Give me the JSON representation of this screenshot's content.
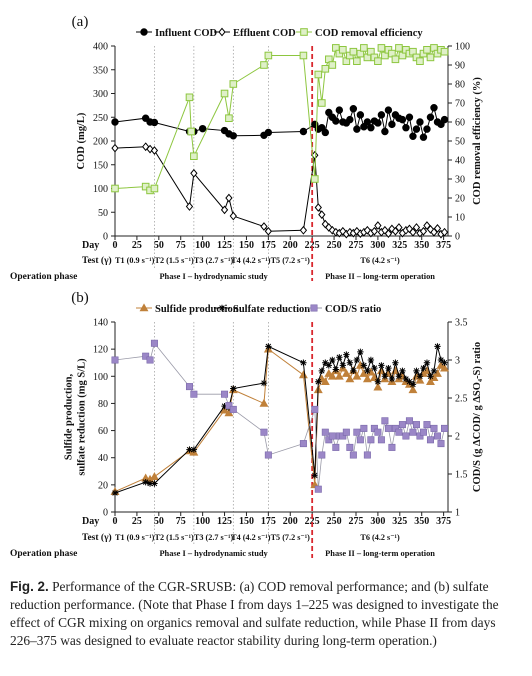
{
  "chart_data": [
    {
      "type": "line",
      "panel_label": "(a)",
      "xlabel": "Day",
      "ylabel": "COD (mg/L)",
      "ylabel_right": "COD removal efficiency (%)",
      "xlim": [
        0,
        380
      ],
      "ylim": [
        0,
        400
      ],
      "ylim_right": [
        0,
        100
      ],
      "xticks": [
        0,
        25,
        50,
        75,
        100,
        125,
        150,
        175,
        200,
        225,
        250,
        275,
        300,
        325,
        350,
        375
      ],
      "yticks": [
        0,
        50,
        100,
        150,
        200,
        250,
        300,
        350,
        400
      ],
      "yticks_right": [
        0,
        10,
        20,
        30,
        40,
        50,
        60,
        70,
        80,
        90,
        100
      ],
      "legend": [
        "Influent COD",
        "Effluent COD",
        "COD removal efficiency"
      ],
      "series": [
        {
          "name": "Influent COD",
          "axis": "left",
          "marker": "filled-circle",
          "color": "#000000",
          "x": [
            0,
            35,
            40,
            45,
            85,
            90,
            100,
            125,
            130,
            135,
            170,
            175,
            215,
            228,
            232,
            236,
            240,
            244,
            248,
            252,
            256,
            260,
            264,
            268,
            272,
            276,
            280,
            284,
            288,
            292,
            296,
            300,
            304,
            308,
            312,
            316,
            320,
            324,
            328,
            332,
            336,
            340,
            344,
            348,
            352,
            356,
            360,
            364,
            368,
            372,
            376
          ],
          "y": [
            240,
            248,
            240,
            239,
            220,
            220,
            226,
            222,
            215,
            211,
            212,
            218,
            220,
            235,
            225,
            228,
            218,
            260,
            250,
            242,
            265,
            240,
            238,
            245,
            268,
            225,
            255,
            230,
            240,
            228,
            242,
            238,
            255,
            220,
            265,
            235,
            255,
            248,
            245,
            228,
            250,
            210,
            225,
            240,
            208,
            225,
            250,
            270,
            240,
            235,
            245
          ]
        },
        {
          "name": "Effluent COD",
          "axis": "left",
          "marker": "open-diamond",
          "color": "#000000",
          "x": [
            0,
            35,
            40,
            45,
            85,
            90,
            125,
            130,
            135,
            170,
            175,
            215,
            228,
            232,
            236,
            240,
            244,
            248,
            252,
            256,
            260,
            264,
            268,
            272,
            276,
            280,
            284,
            288,
            292,
            296,
            300,
            304,
            308,
            312,
            316,
            320,
            324,
            328,
            332,
            336,
            340,
            344,
            348,
            352,
            356,
            360,
            364,
            368,
            372,
            376
          ],
          "y": [
            185,
            188,
            183,
            180,
            62,
            132,
            55,
            80,
            42,
            20,
            10,
            12,
            170,
            60,
            45,
            25,
            18,
            12,
            8,
            6,
            10,
            4,
            8,
            6,
            10,
            5,
            8,
            12,
            6,
            10,
            22,
            8,
            12,
            5,
            15,
            10,
            18,
            6,
            12,
            15,
            8,
            18,
            6,
            10,
            22,
            14,
            8,
            16,
            4,
            8
          ]
        },
        {
          "name": "COD removal efficiency",
          "axis": "right",
          "marker": "open-square",
          "color": "#8dc63f",
          "x": [
            0,
            35,
            40,
            45,
            85,
            87,
            90,
            125,
            130,
            135,
            170,
            175,
            215,
            228,
            232,
            236,
            240,
            244,
            248,
            252,
            256,
            260,
            264,
            268,
            272,
            276,
            280,
            284,
            288,
            292,
            296,
            300,
            304,
            308,
            312,
            316,
            320,
            324,
            328,
            332,
            336,
            340,
            344,
            348,
            352,
            356,
            360,
            364,
            368,
            372,
            376
          ],
          "y": [
            25,
            26,
            24,
            25,
            73,
            55,
            42,
            75,
            62,
            80,
            90,
            95,
            95,
            30,
            85,
            70,
            88,
            93,
            90,
            99,
            96,
            98,
            92,
            95,
            97,
            92,
            96,
            99,
            94,
            97,
            94,
            92,
            99,
            95,
            98,
            96,
            93,
            99,
            95,
            98,
            96,
            97,
            94,
            92,
            96,
            98,
            94,
            99,
            96,
            98,
            97
          ]
        }
      ]
    },
    {
      "type": "line",
      "panel_label": "(b)",
      "xlabel": "Day",
      "ylabel": "Sulfide production,\nsulfate reduction (mg S/L)",
      "ylabel_right": "COD/S (g ΔCOD/ g ΔSO₄-S) ratio",
      "xlim": [
        0,
        380
      ],
      "ylim": [
        0,
        140
      ],
      "ylim_right": [
        1,
        3.5
      ],
      "xticks": [
        0,
        25,
        50,
        75,
        100,
        125,
        150,
        175,
        200,
        225,
        250,
        275,
        300,
        325,
        350,
        375
      ],
      "yticks": [
        0,
        20,
        40,
        60,
        80,
        100,
        120,
        140
      ],
      "yticks_right": [
        1,
        1.5,
        2,
        2.5,
        3,
        3.5
      ],
      "legend": [
        "Sulfide production",
        "Sulfate reduction",
        "COD/S ratio"
      ],
      "series": [
        {
          "name": "Sulfide production",
          "axis": "left",
          "marker": "filled-triangle",
          "color": "#c0813a",
          "x": [
            0,
            35,
            40,
            45,
            85,
            90,
            125,
            130,
            135,
            170,
            175,
            215,
            228,
            232,
            236,
            240,
            244,
            248,
            252,
            256,
            260,
            264,
            268,
            272,
            276,
            280,
            284,
            288,
            292,
            296,
            300,
            304,
            308,
            312,
            316,
            320,
            324,
            328,
            332,
            336,
            340,
            344,
            348,
            352,
            356,
            360,
            364,
            368,
            372,
            376
          ],
          "y": [
            15,
            25,
            24,
            26,
            45,
            44,
            75,
            73,
            90,
            80,
            120,
            101,
            20,
            90,
            98,
            96,
            102,
            100,
            104,
            100,
            106,
            102,
            98,
            104,
            100,
            108,
            102,
            98,
            103,
            99,
            92,
            104,
            98,
            102,
            96,
            104,
            98,
            100,
            96,
            94,
            90,
            100,
            97,
            102,
            104,
            96,
            99,
            102,
            108,
            106
          ]
        },
        {
          "name": "Sulfate reduction",
          "axis": "left",
          "marker": "asterisk",
          "color": "#000000",
          "x": [
            0,
            35,
            40,
            45,
            85,
            90,
            125,
            130,
            135,
            170,
            175,
            215,
            228,
            232,
            236,
            240,
            244,
            248,
            252,
            256,
            260,
            264,
            268,
            272,
            276,
            280,
            284,
            288,
            292,
            296,
            300,
            304,
            308,
            312,
            316,
            320,
            324,
            328,
            332,
            336,
            340,
            344,
            348,
            352,
            356,
            360,
            364,
            368,
            372,
            376
          ],
          "y": [
            14,
            22,
            21,
            21,
            46,
            46,
            78,
            77,
            91,
            95,
            122,
            110,
            27,
            96,
            104,
            110,
            108,
            112,
            105,
            114,
            108,
            116,
            110,
            104,
            112,
            118,
            108,
            104,
            112,
            106,
            96,
            108,
            100,
            106,
            98,
            110,
            100,
            104,
            98,
            96,
            94,
            104,
            100,
            106,
            110,
            100,
            104,
            122,
            112,
            110
          ]
        },
        {
          "name": "COD/S ratio",
          "axis": "right",
          "marker": "filled-square",
          "color": "#9b87c7",
          "x": [
            0,
            35,
            40,
            45,
            85,
            90,
            125,
            130,
            135,
            170,
            175,
            215,
            228,
            232,
            236,
            240,
            244,
            248,
            252,
            256,
            260,
            264,
            268,
            272,
            276,
            280,
            284,
            288,
            292,
            296,
            300,
            304,
            308,
            312,
            316,
            320,
            324,
            328,
            332,
            336,
            340,
            344,
            348,
            352,
            356,
            360,
            364,
            368,
            372,
            376
          ],
          "y": [
            3.0,
            3.05,
            3.0,
            3.22,
            2.65,
            2.55,
            2.55,
            2.4,
            2.35,
            2.05,
            1.75,
            1.9,
            2.35,
            1.3,
            1.75,
            2.05,
            1.95,
            2.0,
            1.85,
            2.0,
            2.0,
            2.05,
            1.85,
            1.75,
            2.05,
            1.95,
            2.1,
            1.75,
            1.95,
            2.1,
            2.05,
            1.95,
            2.2,
            2.1,
            1.85,
            2.1,
            2.05,
            2.15,
            2.0,
            2.2,
            2.05,
            2.15,
            2.0,
            2.05,
            2.15,
            1.95,
            2.1,
            2.0,
            1.9,
            2.1
          ]
        }
      ]
    }
  ],
  "test_row_label": "Test (γ)",
  "phase_row_label": "Operation phase",
  "tests": [
    "T1 (0.9 s⁻¹)",
    "T2 (1.5 s⁻¹)",
    "T3 (2.7 s⁻¹)",
    "T4 (4.2 s⁻¹)",
    "T5 (7.2 s⁻¹)",
    "T6 (4.2 s⁻¹)"
  ],
  "phases": [
    "Phase I – hydrodynamic study",
    "Phase II – long-term operation"
  ],
  "phase_boundary_day": 225,
  "test_boundaries_days": [
    45,
    90,
    135,
    175,
    225
  ],
  "colors": {
    "phase_line": "#d9272e",
    "gridline": "#999999"
  },
  "caption": {
    "label": "Fig. 2.",
    "text": "Performance of the CGR-SRUSB: (a) COD removal performance; and (b) sulfate reduction performance. (Note that Phase I from days 1–225 was designed to investigate the effect of CGR mixing on organics removal and sulfate reduction, while Phase II from days 226–375 was designed to evaluate reactor stability during long-term operation.)"
  }
}
